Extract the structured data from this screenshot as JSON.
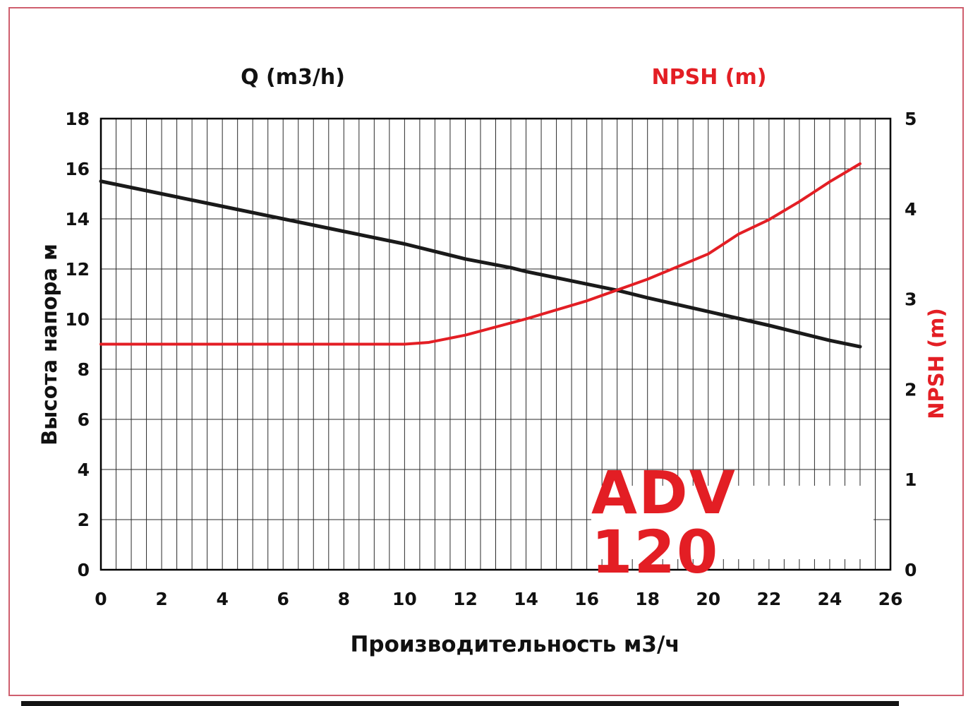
{
  "colors": {
    "accent_red": "#e31e24",
    "line_black": "#1a1a1a",
    "grid": "#2a2a2a",
    "page_border_red": "#cf5f6e"
  },
  "chart_data": {
    "type": "line",
    "title": "ADV 120",
    "x_axis": {
      "top_label": "Q (m3/h)",
      "label": "Производительность м3/ч",
      "min": 0,
      "max": 26,
      "ticks": [
        0,
        2,
        4,
        6,
        8,
        10,
        12,
        14,
        16,
        18,
        20,
        22,
        24,
        26
      ],
      "minor_step": 0.5,
      "grid": true
    },
    "y_left": {
      "label": "Высота напора м",
      "min": 0,
      "max": 18,
      "ticks": [
        0,
        2,
        4,
        6,
        8,
        10,
        12,
        14,
        16,
        18
      ],
      "grid": true
    },
    "y_right": {
      "label": "NPSH (m)",
      "min": 0,
      "max": 5,
      "ticks": [
        0,
        1,
        2,
        3,
        4,
        5
      ]
    },
    "legend": "none",
    "series": [
      {
        "name": "Head curve (Высота напора)",
        "axis": "left",
        "color": "#1a1a1a",
        "width": 5,
        "points": [
          [
            0,
            15.5
          ],
          [
            2,
            15.0
          ],
          [
            4,
            14.5
          ],
          [
            6,
            14.0
          ],
          [
            8,
            13.5
          ],
          [
            10,
            13.0
          ],
          [
            12,
            12.4
          ],
          [
            13.5,
            12.05
          ],
          [
            14,
            11.9
          ],
          [
            16,
            11.4
          ],
          [
            17,
            11.15
          ],
          [
            18,
            10.85
          ],
          [
            20,
            10.3
          ],
          [
            22,
            9.75
          ],
          [
            24,
            9.15
          ],
          [
            25,
            8.9
          ]
        ]
      },
      {
        "name": "NPSH curve",
        "axis": "right",
        "color": "#e31e24",
        "width": 4,
        "points": [
          [
            0,
            2.5
          ],
          [
            2,
            2.5
          ],
          [
            4,
            2.5
          ],
          [
            6,
            2.5
          ],
          [
            8,
            2.5
          ],
          [
            10,
            2.5
          ],
          [
            10.8,
            2.52
          ],
          [
            12,
            2.6
          ],
          [
            14,
            2.78
          ],
          [
            16,
            2.98
          ],
          [
            17,
            3.1
          ],
          [
            18,
            3.22
          ],
          [
            19,
            3.36
          ],
          [
            20,
            3.5
          ],
          [
            21,
            3.72
          ],
          [
            22,
            3.88
          ],
          [
            23,
            4.08
          ],
          [
            24,
            4.3
          ],
          [
            25,
            4.5
          ]
        ]
      }
    ]
  }
}
